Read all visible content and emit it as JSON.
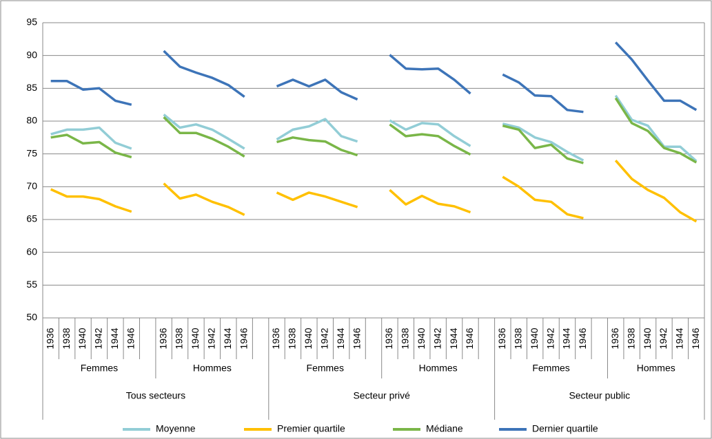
{
  "chart_data": {
    "type": "line",
    "categories": [
      "1936",
      "1938",
      "1940",
      "1942",
      "1944",
      "1946",
      null,
      "1936",
      "1938",
      "1940",
      "1942",
      "1944",
      "1946",
      null,
      "1936",
      "1938",
      "1940",
      "1942",
      "1944",
      "1946",
      null,
      "1936",
      "1938",
      "1940",
      "1942",
      "1944",
      "1946",
      null,
      "1936",
      "1938",
      "1940",
      "1942",
      "1944",
      "1946",
      null,
      "1936",
      "1938",
      "1940",
      "1942",
      "1944",
      "1946"
    ],
    "level2": [
      "Femmes",
      "Hommes",
      "Femmes",
      "Hommes",
      "Femmes",
      "Hommes"
    ],
    "level3": [
      "Tous secteurs",
      "Secteur privé",
      "Secteur public"
    ],
    "ylim": [
      50,
      95
    ],
    "yticks": [
      50,
      55,
      60,
      65,
      70,
      75,
      80,
      85,
      90,
      95
    ],
    "grid": true,
    "legend": "bottom",
    "series": [
      {
        "name": "Moyenne",
        "color": "#92cdd6",
        "values": [
          78.0,
          78.7,
          78.7,
          79.0,
          76.7,
          75.8,
          null,
          81.0,
          79.0,
          79.5,
          78.7,
          77.3,
          75.8,
          null,
          77.2,
          78.7,
          79.2,
          80.3,
          77.7,
          76.9,
          null,
          80.1,
          78.7,
          79.7,
          79.5,
          77.7,
          76.2,
          null,
          79.6,
          79.0,
          77.5,
          76.8,
          75.3,
          74.0,
          null,
          83.9,
          80.2,
          79.3,
          76.1,
          76.1,
          73.9
        ]
      },
      {
        "name": "Premier quartile",
        "color": "#ffc000",
        "values": [
          69.6,
          68.5,
          68.5,
          68.1,
          67.0,
          66.2,
          null,
          70.5,
          68.2,
          68.8,
          67.7,
          66.9,
          65.7,
          null,
          69.1,
          68.0,
          69.1,
          68.5,
          67.7,
          66.9,
          null,
          69.5,
          67.3,
          68.6,
          67.4,
          67.0,
          66.1,
          null,
          71.5,
          70.0,
          68.0,
          67.7,
          65.8,
          65.2,
          null,
          74.0,
          71.2,
          69.5,
          68.3,
          66.1,
          64.7
        ]
      },
      {
        "name": "Médiane",
        "color": "#7ab648",
        "values": [
          77.5,
          77.9,
          76.6,
          76.8,
          75.2,
          74.5,
          null,
          80.6,
          78.2,
          78.2,
          77.3,
          76.1,
          74.6,
          null,
          76.8,
          77.5,
          77.1,
          76.9,
          75.6,
          74.8,
          null,
          79.5,
          77.7,
          78.0,
          77.7,
          76.2,
          74.9,
          null,
          79.3,
          78.7,
          75.9,
          76.4,
          74.3,
          73.6,
          null,
          83.5,
          79.7,
          78.5,
          75.9,
          75.1,
          73.7
        ]
      },
      {
        "name": "Dernier quartile",
        "color": "#3d74b8",
        "values": [
          86.1,
          86.1,
          84.8,
          85.0,
          83.1,
          82.5,
          null,
          90.7,
          88.3,
          87.4,
          86.6,
          85.5,
          83.7,
          null,
          85.3,
          86.3,
          85.3,
          86.3,
          84.4,
          83.3,
          null,
          90.1,
          88.0,
          87.9,
          88.0,
          86.3,
          84.2,
          null,
          87.1,
          85.9,
          83.9,
          83.8,
          81.7,
          81.4,
          null,
          92.0,
          89.4,
          86.2,
          83.1,
          83.1,
          81.7
        ]
      }
    ]
  }
}
